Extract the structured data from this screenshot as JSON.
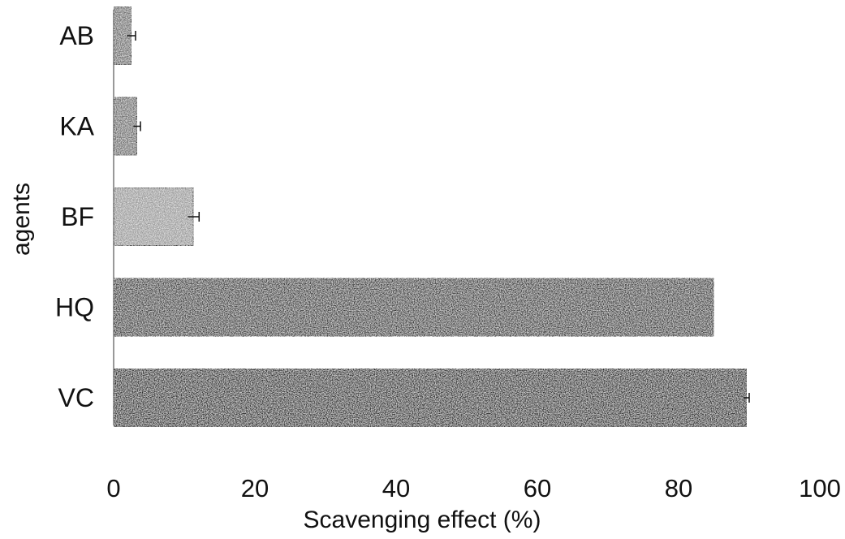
{
  "chart_data": {
    "type": "bar",
    "orientation": "horizontal",
    "categories": [
      "AB",
      "KA",
      "BF",
      "HQ",
      "VC"
    ],
    "values": [
      2.5,
      3.3,
      11.3,
      85.0,
      89.6
    ],
    "errors": [
      0.6,
      0.5,
      0.8,
      0.0,
      0.4
    ],
    "xlabel": "Scavenging effect (%)",
    "ylabel": "agents",
    "xlim": [
      0,
      100
    ],
    "xticks": [
      0,
      20,
      40,
      60,
      80,
      100
    ],
    "grid": false,
    "bar_colors": [
      "#6e6e6e",
      "#6e6e6e",
      "#9a9a9a",
      "#3c3c3c",
      "#2e2e2e"
    ]
  }
}
